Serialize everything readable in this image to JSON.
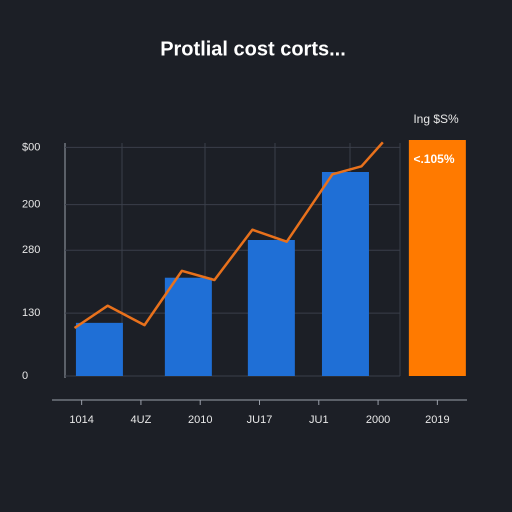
{
  "chart_data": {
    "type": "bar",
    "title": "Protlial cost corts...",
    "categories": [
      "1014",
      "4UZ",
      "2010",
      "JU17",
      "JU1",
      "2000",
      "2019"
    ],
    "ylim": [
      0,
      420
    ],
    "yticks": [
      {
        "value": 400,
        "label": "$00"
      },
      {
        "value": 300,
        "label": "200"
      },
      {
        "value": 220,
        "label": "280"
      },
      {
        "value": 110,
        "label": "130"
      },
      0
    ],
    "grid": true,
    "bars": [
      {
        "color": "#1f6fd6",
        "x": [
          0.3,
          1.8,
          3.2,
          4.45
        ],
        "values": [
          93,
          172,
          238,
          357
        ]
      },
      {
        "color": "#ff7a00",
        "x": [
          6
        ],
        "values": [
          413
        ]
      }
    ],
    "line": {
      "color": "#e8711c",
      "x": [
        -0.12,
        0.44,
        1.06,
        1.69,
        2.24,
        2.88,
        3.46,
        4.23,
        4.72,
        5.08
      ],
      "values": [
        84,
        123,
        89,
        184,
        168,
        256,
        235,
        353,
        367,
        409
      ]
    },
    "annotations": [
      "Ing $S%",
      "<.105%"
    ]
  }
}
